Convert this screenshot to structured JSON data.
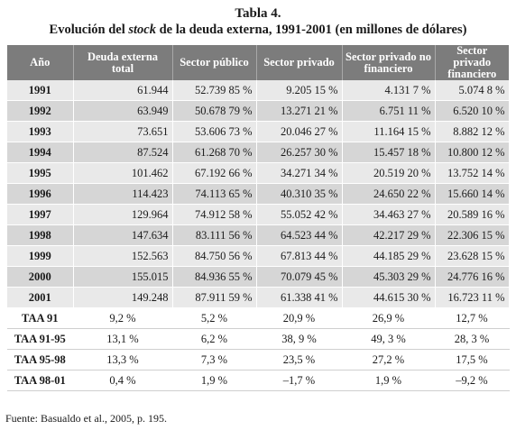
{
  "title": "Tabla 4.",
  "subtitle": {
    "pre": "Evolución del ",
    "em": "stock",
    "post": " de la deuda externa, 1991-2001 (en millones de dólares)"
  },
  "headers": [
    "Año",
    "Deuda externa total",
    "Sector público",
    "Sector privado",
    "Sector privado no financiero",
    "Sector privado financiero"
  ],
  "rows": [
    [
      "1991",
      "61.944",
      "52.739 85 %",
      "9.205 15 %",
      "4.131 7 %",
      "5.074 8 %"
    ],
    [
      "1992",
      "63.949",
      "50.678 79 %",
      "13.271 21 %",
      "6.751 11 %",
      "6.520 10 %"
    ],
    [
      "1993",
      "73.651",
      "53.606 73 %",
      "20.046 27 %",
      "11.164 15 %",
      "8.882 12 %"
    ],
    [
      "1994",
      "87.524",
      "61.268 70 %",
      "26.257 30 %",
      "15.457 18 %",
      "10.800 12 %"
    ],
    [
      "1995",
      "101.462",
      "67.192 66 %",
      "34.271 34 %",
      "20.519 20 %",
      "13.752 14 %"
    ],
    [
      "1996",
      "114.423",
      "74.113 65 %",
      "40.310 35 %",
      "24.650 22 %",
      "15.660 14 %"
    ],
    [
      "1997",
      "129.964",
      "74.912 58 %",
      "55.052 42 %",
      "34.463 27 %",
      "20.589 16 %"
    ],
    [
      "1998",
      "147.634",
      "83.111 56 %",
      "64.523 44 %",
      "42.217 29 %",
      "22.306 15 %"
    ],
    [
      "1999",
      "152.563",
      "84.750 56 %",
      "67.813 44 %",
      "44.185 29 %",
      "23.628 15 %"
    ],
    [
      "2000",
      "155.015",
      "84.936 55 %",
      "70.079 45 %",
      "45.303 29 %",
      "24.776 16 %"
    ],
    [
      "2001",
      "149.248",
      "87.911 59 %",
      "61.338 41 %",
      "44.615 30 %",
      "16.723 11 %"
    ]
  ],
  "taa_rows": [
    [
      "TAA 91",
      "9,2 %",
      "5,2 %",
      "20,9 %",
      "26,9 %",
      "12,7 %"
    ],
    [
      "TAA 91-95",
      "13,1 %",
      "6,2 %",
      "38, 9 %",
      "49, 3 %",
      "28, 3 %"
    ],
    [
      "TAA 95-98",
      "13,3 %",
      "7,3 %",
      "23,5 %",
      "27,2 %",
      "17,5 %"
    ],
    [
      "TAA 98-01",
      "0,4 %",
      "1,9 %",
      "–1,7 %",
      "1,9 %",
      "–9,2 %"
    ]
  ],
  "source": "Fuente: Basualdo et al., 2005, p. 195.",
  "colors": {
    "header_bg": "#7c7c7c",
    "row_light": "#e9e9e9",
    "row_dark": "#d6d6d6"
  }
}
